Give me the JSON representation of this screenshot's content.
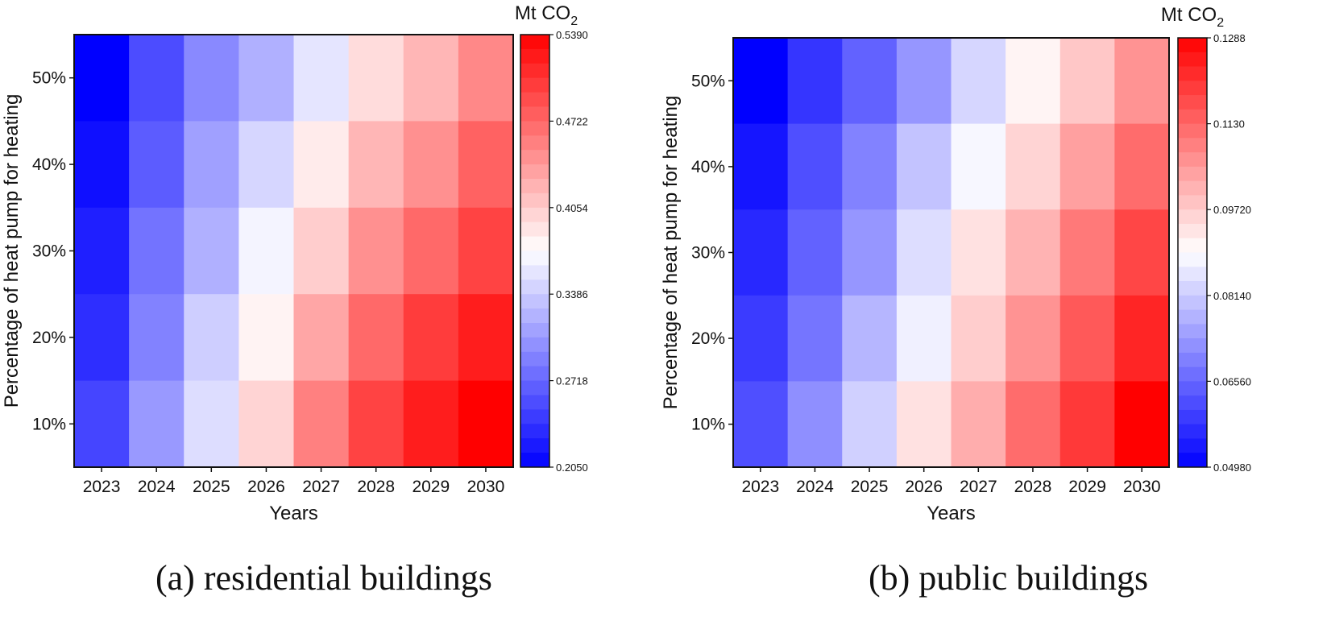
{
  "chart_data": [
    {
      "type": "heatmap",
      "caption": "(a) residential buildings",
      "xlabel": "Years",
      "ylabel": "Percentage of heat pump for heating",
      "x_categories": [
        "2023",
        "2024",
        "2025",
        "2026",
        "2027",
        "2028",
        "2029",
        "2030"
      ],
      "y_categories": [
        "50%",
        "40%",
        "30%",
        "20%",
        "10%"
      ],
      "colorbar": {
        "label_main": "Mt CO",
        "label_sub": "2",
        "min": 0.205,
        "max": 0.539,
        "ticks": [
          "0.5390",
          "0.4722",
          "0.4054",
          "0.3386",
          "0.2718",
          "0.2050"
        ]
      },
      "values": [
        [
          0.205,
          0.255,
          0.295,
          0.32,
          0.355,
          0.395,
          0.42,
          0.45
        ],
        [
          0.215,
          0.265,
          0.31,
          0.345,
          0.385,
          0.42,
          0.445,
          0.475
        ],
        [
          0.225,
          0.28,
          0.32,
          0.365,
          0.405,
          0.445,
          0.47,
          0.495
        ],
        [
          0.235,
          0.29,
          0.34,
          0.38,
          0.43,
          0.47,
          0.5,
          0.52
        ],
        [
          0.25,
          0.305,
          0.35,
          0.4,
          0.455,
          0.495,
          0.52,
          0.539
        ]
      ]
    },
    {
      "type": "heatmap",
      "caption": "(b) public buildings",
      "xlabel": "Years",
      "ylabel": "Percentage of heat pump for heating",
      "x_categories": [
        "2023",
        "2024",
        "2025",
        "2026",
        "2027",
        "2028",
        "2029",
        "2030"
      ],
      "y_categories": [
        "50%",
        "40%",
        "30%",
        "20%",
        "10%"
      ],
      "colorbar": {
        "label_main": "Mt CO",
        "label_sub": "2",
        "min": 0.0498,
        "max": 0.1288,
        "ticks": [
          "0.1288",
          "0.1130",
          "0.09720",
          "0.08140",
          "0.06560",
          "0.04980"
        ]
      },
      "values": [
        [
          0.0498,
          0.058,
          0.065,
          0.073,
          0.083,
          0.091,
          0.098,
          0.106
        ],
        [
          0.053,
          0.062,
          0.07,
          0.08,
          0.088,
          0.096,
          0.104,
          0.112
        ],
        [
          0.056,
          0.065,
          0.073,
          0.084,
          0.094,
          0.101,
          0.11,
          0.118
        ],
        [
          0.059,
          0.068,
          0.078,
          0.087,
          0.097,
          0.106,
          0.115,
          0.123
        ],
        [
          0.062,
          0.072,
          0.082,
          0.094,
          0.102,
          0.112,
          0.12,
          0.1288
        ]
      ]
    }
  ]
}
